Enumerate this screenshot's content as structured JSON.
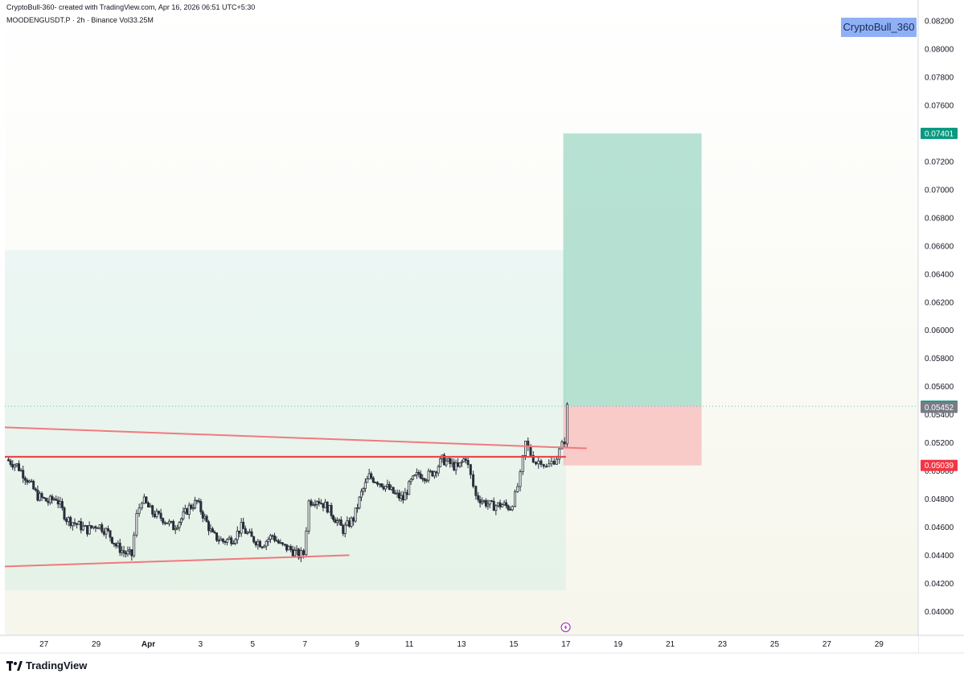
{
  "header": {
    "line1": "CryptoBull-360- created with TradingView.com, Apr 16, 2026 06:51 UTC+5:30",
    "line2": "MOODENGUSDT.P · 2h · Binance  Vol33.25M"
  },
  "watermark_badge": "CryptoBull_360",
  "branding": {
    "logo_text": "TradingView"
  },
  "colors": {
    "up": "#26a69a",
    "down": "#ef5350",
    "candle": "#2a2e39",
    "trendline": "#f07a7e",
    "resistance": "#e8484f",
    "target_zone": "#9fd8c6",
    "stop_zone": "#f7b9b9",
    "price_tag_green": "#089981",
    "price_tag_red": "#f23645",
    "price_tag_gray": "#787b86"
  },
  "chart_data": {
    "type": "candlestick",
    "title": "",
    "symbol": "MOODENGUSDT.P",
    "interval": "2h",
    "exchange": "Binance",
    "volume": "Vol33.25M",
    "x_tick_labels": [
      "27",
      "29",
      "Apr",
      "3",
      "5",
      "7",
      "9",
      "11",
      "13",
      "15",
      "17",
      "19",
      "21",
      "23",
      "25",
      "27",
      "29"
    ],
    "x_tick_days": [
      -4,
      -2,
      0,
      2,
      4,
      6,
      8,
      10,
      12,
      14,
      16,
      18,
      20,
      22,
      24,
      26,
      28
    ],
    "x_range_days": [
      -5.5,
      29.5
    ],
    "y_tick_labels": [
      "0.04000",
      "0.04200",
      "0.04400",
      "0.04600",
      "0.04800",
      "0.05000",
      "0.05200",
      "0.05400",
      "0.05600",
      "0.05800",
      "0.06000",
      "0.06200",
      "0.06400",
      "0.06600",
      "0.06800",
      "0.07000",
      "0.07200",
      "0.07400",
      "0.07600",
      "0.07800",
      "0.08000",
      "0.08200"
    ],
    "y_range": [
      0.0383,
      0.0835
    ],
    "grid": false,
    "price_labels": [
      {
        "text": "0.07401",
        "value": 0.07401,
        "style": "green"
      },
      {
        "text": "0.05460",
        "value": 0.0546,
        "style": "green"
      },
      {
        "text": "0.05452",
        "value": 0.05452,
        "style": "gray"
      },
      {
        "text": "0.05039",
        "value": 0.05039,
        "style": "red"
      }
    ],
    "position": {
      "type": "long",
      "entry": 0.0546,
      "target": 0.07401,
      "stop": 0.05039,
      "start_day": 15.9,
      "end_day": 21.2
    },
    "trendlines": [
      {
        "name": "descending",
        "from": {
          "day": -5.5,
          "price": 0.0531
        },
        "to": {
          "day": 16.8,
          "price": 0.0516
        }
      },
      {
        "name": "ascending-support",
        "from": {
          "day": -5.5,
          "price": 0.0432
        },
        "to": {
          "day": 7.7,
          "price": 0.044
        }
      },
      {
        "name": "horizontal-resistance",
        "from": {
          "day": -5.5,
          "price": 0.051
        },
        "to": {
          "day": 16.0,
          "price": 0.051
        }
      }
    ],
    "background_zone": {
      "from_day": -5.5,
      "to_day": 16.0,
      "top": 0.0657,
      "bottom": 0.0415
    },
    "price_path": [
      {
        "day": -5.4,
        "price": 0.0508
      },
      {
        "day": -5.0,
        "price": 0.0504
      },
      {
        "day": -4.6,
        "price": 0.0494
      },
      {
        "day": -4.2,
        "price": 0.0482
      },
      {
        "day": -3.8,
        "price": 0.0478
      },
      {
        "day": -3.5,
        "price": 0.0481
      },
      {
        "day": -3.1,
        "price": 0.0466
      },
      {
        "day": -2.7,
        "price": 0.0462
      },
      {
        "day": -2.3,
        "price": 0.0458
      },
      {
        "day": -1.9,
        "price": 0.0462
      },
      {
        "day": -1.5,
        "price": 0.0456
      },
      {
        "day": -1.2,
        "price": 0.0447
      },
      {
        "day": -0.9,
        "price": 0.0442
      },
      {
        "day": -0.6,
        "price": 0.044
      },
      {
        "day": -0.4,
        "price": 0.0468
      },
      {
        "day": -0.2,
        "price": 0.048
      },
      {
        "day": 0.2,
        "price": 0.047
      },
      {
        "day": 0.6,
        "price": 0.0466
      },
      {
        "day": 1.0,
        "price": 0.046
      },
      {
        "day": 1.3,
        "price": 0.0466
      },
      {
        "day": 1.6,
        "price": 0.0474
      },
      {
        "day": 1.9,
        "price": 0.0478
      },
      {
        "day": 2.2,
        "price": 0.0466
      },
      {
        "day": 2.5,
        "price": 0.0454
      },
      {
        "day": 2.9,
        "price": 0.045
      },
      {
        "day": 3.3,
        "price": 0.0452
      },
      {
        "day": 3.6,
        "price": 0.046
      },
      {
        "day": 4.0,
        "price": 0.0452
      },
      {
        "day": 4.4,
        "price": 0.0448
      },
      {
        "day": 4.8,
        "price": 0.0454
      },
      {
        "day": 5.1,
        "price": 0.0447
      },
      {
        "day": 5.5,
        "price": 0.0444
      },
      {
        "day": 5.8,
        "price": 0.044
      },
      {
        "day": 6.0,
        "price": 0.0441
      },
      {
        "day": 6.2,
        "price": 0.0478
      },
      {
        "day": 6.5,
        "price": 0.048
      },
      {
        "day": 6.9,
        "price": 0.0474
      },
      {
        "day": 7.2,
        "price": 0.0466
      },
      {
        "day": 7.5,
        "price": 0.0458
      },
      {
        "day": 7.9,
        "price": 0.0466
      },
      {
        "day": 8.2,
        "price": 0.0484
      },
      {
        "day": 8.5,
        "price": 0.0496
      },
      {
        "day": 8.9,
        "price": 0.0492
      },
      {
        "day": 9.2,
        "price": 0.0488
      },
      {
        "day": 9.5,
        "price": 0.0483
      },
      {
        "day": 9.8,
        "price": 0.048
      },
      {
        "day": 10.1,
        "price": 0.0492
      },
      {
        "day": 10.4,
        "price": 0.0498
      },
      {
        "day": 10.7,
        "price": 0.0496
      },
      {
        "day": 11.0,
        "price": 0.05
      },
      {
        "day": 11.3,
        "price": 0.0508
      },
      {
        "day": 11.6,
        "price": 0.0505
      },
      {
        "day": 11.9,
        "price": 0.0502
      },
      {
        "day": 12.2,
        "price": 0.051
      },
      {
        "day": 12.4,
        "price": 0.0496
      },
      {
        "day": 12.6,
        "price": 0.0482
      },
      {
        "day": 12.9,
        "price": 0.0478
      },
      {
        "day": 13.2,
        "price": 0.0475
      },
      {
        "day": 13.6,
        "price": 0.0476
      },
      {
        "day": 13.9,
        "price": 0.0474
      },
      {
        "day": 14.1,
        "price": 0.0482
      },
      {
        "day": 14.3,
        "price": 0.0496
      },
      {
        "day": 14.5,
        "price": 0.052
      },
      {
        "day": 14.7,
        "price": 0.0512
      },
      {
        "day": 14.9,
        "price": 0.0506
      },
      {
        "day": 15.1,
        "price": 0.0508
      },
      {
        "day": 15.3,
        "price": 0.0502
      },
      {
        "day": 15.5,
        "price": 0.0506
      },
      {
        "day": 15.7,
        "price": 0.051
      },
      {
        "day": 15.9,
        "price": 0.0518
      },
      {
        "day": 16.0,
        "price": 0.0522
      },
      {
        "day": 16.1,
        "price": 0.05452
      }
    ]
  }
}
